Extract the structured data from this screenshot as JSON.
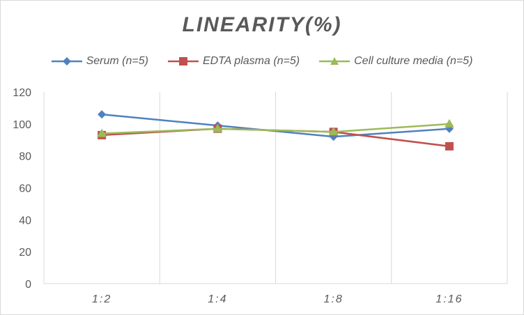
{
  "chart_data": {
    "type": "line",
    "title": "LINEARITY(%)",
    "xlabel": "",
    "ylabel": "",
    "categories": [
      "1:2",
      "1:4",
      "1:8",
      "1:16"
    ],
    "ylim": [
      0,
      120
    ],
    "yticks": [
      0,
      20,
      40,
      60,
      80,
      100,
      120
    ],
    "grid": "vertical",
    "legend_position": "top",
    "series": [
      {
        "name": "Serum (n=5)",
        "values": [
          106,
          99,
          92,
          97
        ],
        "color": "#4f81bd",
        "marker": "diamond"
      },
      {
        "name": "EDTA plasma (n=5)",
        "values": [
          93,
          97,
          95,
          86
        ],
        "color": "#c0504d",
        "marker": "square"
      },
      {
        "name": "Cell culture media (n=5)",
        "values": [
          94,
          97,
          95,
          100
        ],
        "color": "#9bbb59",
        "marker": "triangle"
      }
    ]
  }
}
